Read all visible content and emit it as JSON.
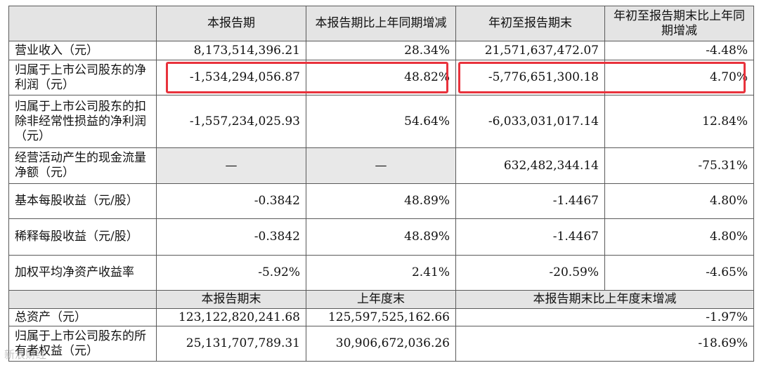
{
  "header": {
    "c1": "本报告期",
    "c2": "本报告期比上年同期增减",
    "c3": "年初至报告期末",
    "c4": "年初至报告期末比上年同期增减"
  },
  "rows": [
    {
      "label": "营业收入（元）",
      "v1": "8,173,514,396.21",
      "v2": "28.34%",
      "v3": "21,571,637,472.07",
      "v4": "-4.48%"
    },
    {
      "label": "归属于上市公司股东的净利润（元）",
      "v1": "-1,534,294,056.87",
      "v2": "48.82%",
      "v3": "-5,776,651,300.18",
      "v4": "4.70%"
    },
    {
      "label": "归属于上市公司股东的扣除非经常性损益的净利润（元）",
      "v1": "-1,557,234,025.93",
      "v2": "54.64%",
      "v3": "-6,033,031,017.14",
      "v4": "12.84%"
    },
    {
      "label": "经营活动产生的现金流量净额（元）",
      "v1": "—",
      "v2": "—",
      "v3": "632,482,344.14",
      "v4": "-75.31%"
    },
    {
      "label": "基本每股收益（元/股）",
      "v1": "-0.3842",
      "v2": "48.89%",
      "v3": "-1.4467",
      "v4": "4.80%"
    },
    {
      "label": "稀释每股收益（元/股）",
      "v1": "-0.3842",
      "v2": "48.89%",
      "v3": "-1.4467",
      "v4": "4.80%"
    },
    {
      "label": "加权平均净资产收益率",
      "v1": "-5.92%",
      "v2": "2.41%",
      "v3": "-20.59%",
      "v4": "-4.65%"
    }
  ],
  "header2": {
    "c1": "本报告期末",
    "c2": "上年度末",
    "c3": "本报告期末比上年度末增减"
  },
  "rows2": [
    {
      "label": "总资产（元）",
      "v1": "123,122,820,241.68",
      "v2": "125,597,525,162.66",
      "v3": "-1.97%"
    },
    {
      "label": "归属于上市公司股东的所有者权益（元）",
      "v1": "25,131,707,789.31",
      "v2": "30,906,672,036.26",
      "v3": "-18.69%"
    }
  ],
  "watermark": "新浪财经"
}
